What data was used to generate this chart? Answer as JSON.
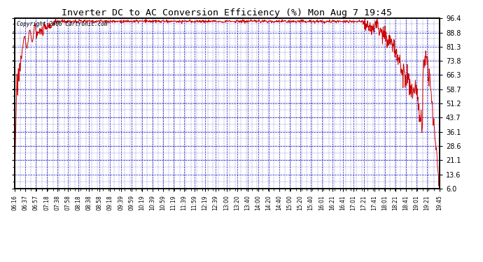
{
  "title": "Inverter DC to AC Conversion Efficiency (%) Mon Aug 7 19:45",
  "copyright_text": "Copyright 2006 Cartronic.com",
  "y_ticks": [
    6.0,
    13.6,
    21.1,
    28.6,
    36.1,
    43.7,
    51.2,
    58.7,
    66.3,
    73.8,
    81.3,
    88.8,
    96.4
  ],
  "ylim": [
    6.0,
    96.4
  ],
  "line_color": "#cc0000",
  "background_color": "#ffffff",
  "grid_color": "#0000bb",
  "title_color": "#000000",
  "x_tick_labels": [
    "06:16",
    "06:37",
    "06:57",
    "07:18",
    "07:38",
    "07:58",
    "08:18",
    "08:38",
    "08:58",
    "09:18",
    "09:39",
    "09:59",
    "10:19",
    "10:39",
    "10:59",
    "11:19",
    "11:39",
    "11:59",
    "12:19",
    "12:39",
    "13:00",
    "13:20",
    "13:40",
    "14:00",
    "14:20",
    "14:40",
    "15:00",
    "15:20",
    "15:40",
    "16:01",
    "16:21",
    "16:41",
    "17:01",
    "17:21",
    "17:41",
    "18:01",
    "18:21",
    "18:41",
    "19:01",
    "19:21",
    "19:45"
  ],
  "total_minutes": 809,
  "n_points": 1200,
  "figsize": [
    6.9,
    3.75
  ],
  "dpi": 100
}
